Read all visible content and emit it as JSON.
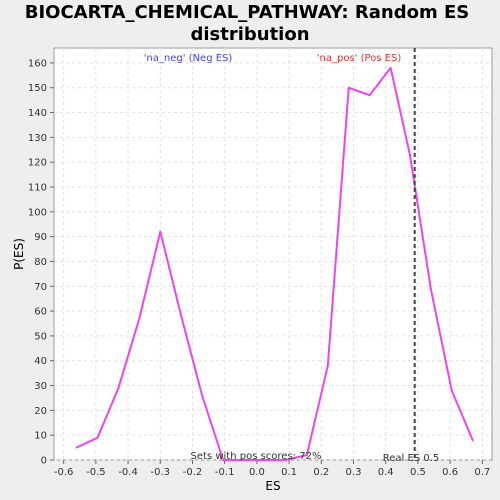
{
  "chart_data": {
    "type": "line",
    "title_line1": "BIOCARTA_CHEMICAL_PATHWAY: Random ES",
    "title_line2": "distribution",
    "xlabel": "ES",
    "ylabel": "P(ES)",
    "xlim": [
      -0.63,
      0.73
    ],
    "ylim": [
      0,
      166
    ],
    "xticks": [
      -0.6,
      -0.5,
      -0.4,
      -0.3,
      -0.2,
      -0.1,
      0.0,
      0.1,
      0.2,
      0.3,
      0.4,
      0.5,
      0.6,
      0.7
    ],
    "xtick_labels": [
      "-0.6",
      "-0.5",
      "-0.4",
      "-0.3",
      "-0.2",
      "-0.1",
      "0.0",
      "0.1",
      "0.2",
      "0.3",
      "0.4",
      "0.5",
      "0.6",
      "0.7"
    ],
    "yticks": [
      0,
      10,
      20,
      30,
      40,
      50,
      60,
      70,
      80,
      90,
      100,
      110,
      120,
      130,
      140,
      150,
      160
    ],
    "ytick_labels": [
      "0",
      "10",
      "20",
      "30",
      "40",
      "50",
      "60",
      "70",
      "80",
      "90",
      "100",
      "110",
      "120",
      "130",
      "140",
      "150",
      "160"
    ],
    "grid": true,
    "series": [
      {
        "color": "#ee44ee",
        "x": [
          -0.56,
          -0.495,
          -0.43,
          -0.365,
          -0.3,
          -0.235,
          -0.17,
          -0.105,
          -0.04,
          0.025,
          0.09,
          0.155,
          0.22,
          0.285,
          0.35,
          0.415,
          0.475,
          0.54,
          0.605,
          0.67
        ],
        "y": [
          5,
          9,
          29,
          57,
          92,
          58,
          26,
          0,
          0,
          0,
          0,
          2,
          38,
          150,
          147,
          158,
          123,
          69,
          28,
          8
        ]
      }
    ],
    "real_es": 0.49,
    "annotations": {
      "neg_label": "'na_neg' (Neg ES)",
      "pos_label": "'na_pos' (Pos ES)",
      "pos_scores": "Sets with pos scores: 72%",
      "real_es_label": "Real ES 0.5"
    },
    "colors": {
      "neg": "#4444dd",
      "pos": "#dd3333",
      "line": "#ee44ee",
      "real_es_line": "#444444"
    }
  }
}
